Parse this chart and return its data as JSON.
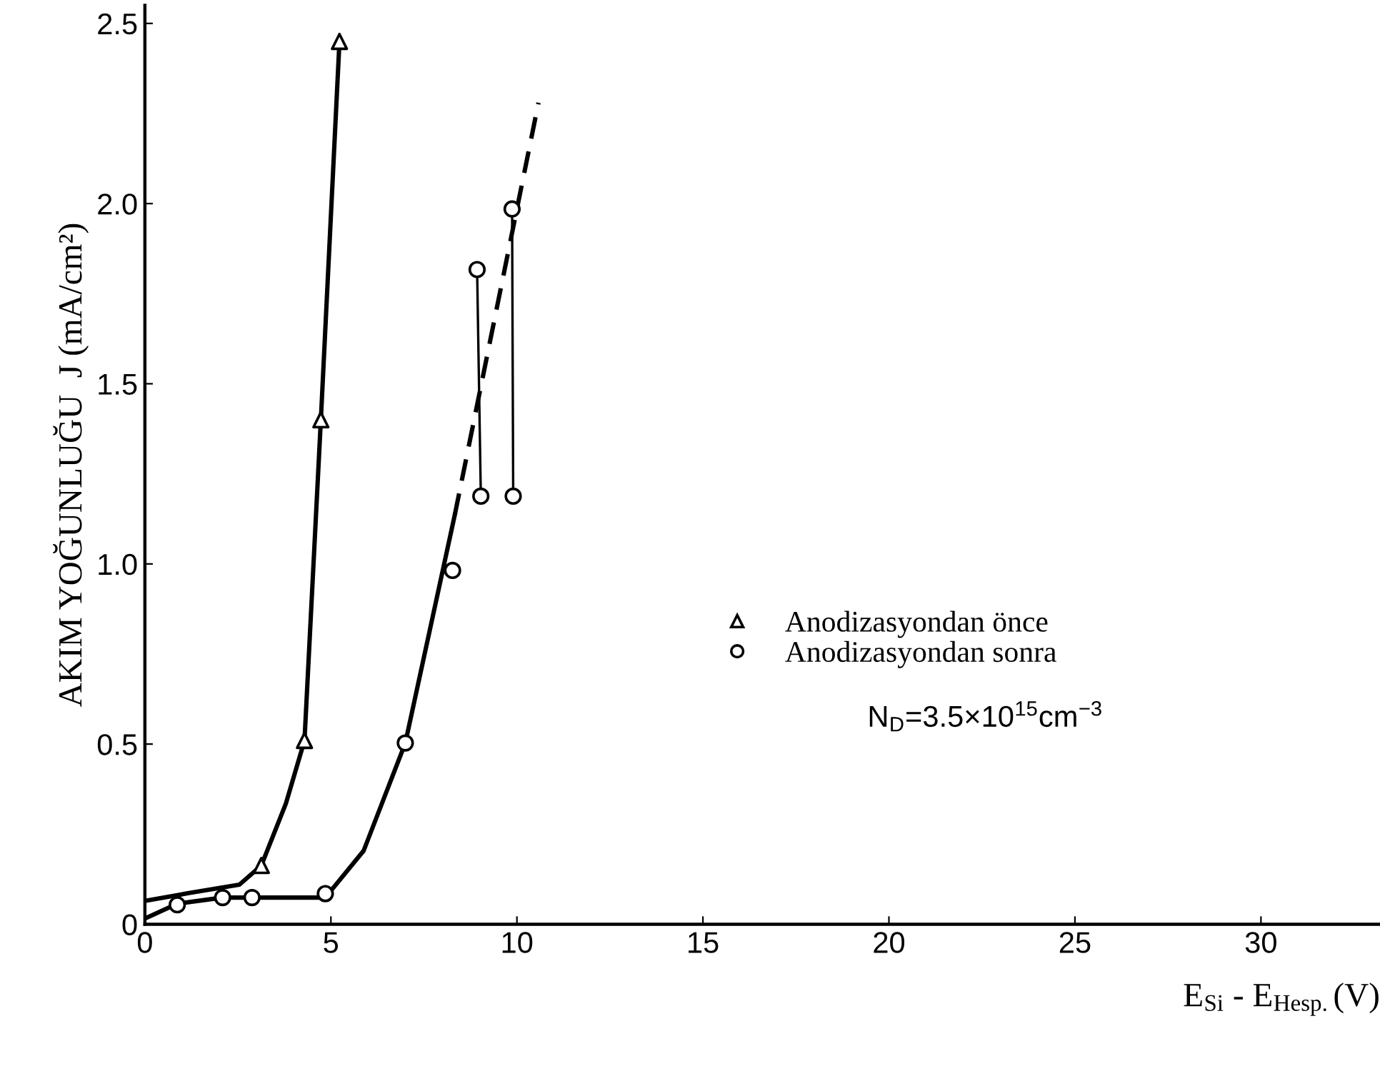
{
  "chart_data": {
    "type": "scatter",
    "xlabel": "E$_{Si}$ - E$_{Hesp.}$(V)",
    "ylabel": "AKIM YOĞUNLUĞU  J (mA/cm²)",
    "xlim": [
      0,
      33.2
    ],
    "ylim": [
      0,
      2.55
    ],
    "xticks": [
      0,
      5,
      10,
      15,
      20,
      25,
      30
    ],
    "yticks": [
      {
        "value": 0,
        "label": "0"
      },
      {
        "value": 0.5,
        "label": "0.5"
      },
      {
        "value": 1.0,
        "label": "1.0"
      },
      {
        "value": 1.5,
        "label": "1.5"
      },
      {
        "value": 2.0,
        "label": "2.0"
      },
      {
        "value": 2.5,
        "label": "2.5"
      }
    ],
    "grid": false,
    "legend": "center right",
    "annotations": [
      "N$_{D}$=3.5×10$^{15}$cm$^{−3}$"
    ],
    "series": [
      {
        "name": "Anodizasyondan önce",
        "marker": "triangle",
        "color": "#000000",
        "x": [
          3.13,
          4.29,
          4.73,
          5.23
        ],
        "values": [
          0.163,
          0.51,
          1.4,
          2.45
        ]
      },
      {
        "name": "Anodizasyondan sonra",
        "marker": "circle",
        "color": "#000000",
        "x": [
          0.87,
          2.09,
          2.88,
          4.85,
          7.0,
          8.27,
          8.93,
          9.03,
          9.87,
          9.9
        ],
        "values": [
          0.054,
          0.074,
          0.074,
          0.085,
          0.503,
          0.982,
          1.817,
          1.188,
          1.985,
          1.188
        ]
      },
      {
        "type": "line",
        "marker": "none",
        "line_style": "solid",
        "color": "#000000",
        "x": [
          0,
          1.21,
          2.54,
          3.13,
          3.79,
          4.29,
          4.73,
          5.23
        ],
        "values": [
          0.065,
          0.087,
          0.11,
          0.163,
          0.335,
          0.51,
          1.4,
          2.45
        ]
      },
      {
        "type": "line",
        "marker": "none",
        "line_style": "solid",
        "color": "#000000",
        "x": [
          0,
          0.87,
          2.09,
          4.85,
          5.88,
          7.0,
          8.33
        ],
        "values": [
          0.016,
          0.057,
          0.074,
          0.074,
          0.204,
          0.503,
          1.136
        ]
      },
      {
        "type": "line",
        "marker": "none",
        "line_style": "dashed",
        "color": "#000000",
        "x": [
          8.33,
          10.58
        ],
        "values": [
          1.136,
          2.28
        ]
      },
      {
        "type": "line",
        "marker": "none",
        "line_style": "solid",
        "color": "#000000",
        "x": [
          8.93,
          9.03
        ],
        "values": [
          1.817,
          1.188
        ]
      },
      {
        "type": "line",
        "marker": "none",
        "line_style": "solid",
        "color": "#000000",
        "x": [
          9.87,
          9.9
        ],
        "values": [
          1.985,
          1.188
        ]
      }
    ]
  }
}
